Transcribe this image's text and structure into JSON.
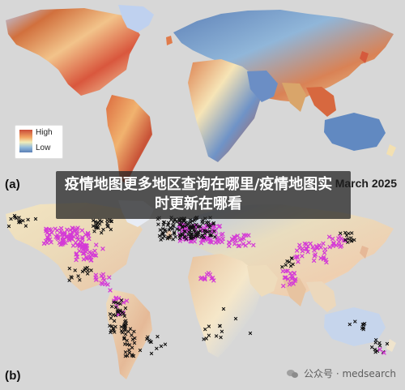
{
  "panels": {
    "a_label": "(a)",
    "b_label": "(b)"
  },
  "legend": {
    "high": "High",
    "low": "Low"
  },
  "overlay": {
    "title": "疫情地图更多地区查询在哪里/疫情地图实时更新在哪看",
    "date": "March 2025"
  },
  "watermark": {
    "text": "公众号 · medsearch",
    "icon": "wechat-icon"
  },
  "colors": {
    "ocean": "#d7d7d7",
    "high": "#c94b38",
    "mid": "#f1edb9",
    "low": "#5c7fb5",
    "pink_marker": "#d43ad6",
    "black_marker": "#111111"
  }
}
